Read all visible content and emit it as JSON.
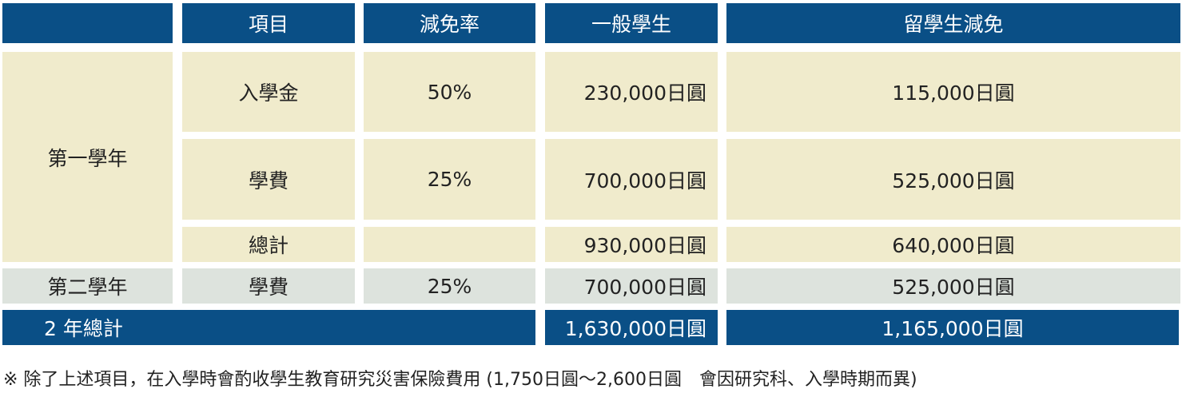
{
  "header": [
    "",
    "項目",
    "減免率",
    "一般學生",
    "留學生減免"
  ],
  "year1": {
    "label": "第一學年",
    "rows": [
      {
        "item": "入學金",
        "rate": "50%",
        "general": "230,000日圓",
        "intl": "115,000日圓"
      },
      {
        "item": "學費",
        "rate": "25%",
        "general": "700,000日圓",
        "intl": "525,000日圓"
      },
      {
        "item": "總計",
        "rate": "",
        "general": "930,000日圓",
        "intl": "640,000日圓"
      }
    ]
  },
  "year2": {
    "label": "第二學年",
    "item": "學費",
    "rate": "25%",
    "general": "700,000日圓",
    "intl": "525,000日圓"
  },
  "total": {
    "label": "2 年總計",
    "general": "1,630,000日圓",
    "intl": "1,165,000日圓"
  },
  "note": "※ 除了上述項目，在入學時會酌收學生教育研究災害保險費用 (1,750日圓～2,600日圓　會因研究科、入學時期而異)",
  "colors": {
    "header": "#0a4f86",
    "year1_bg": "#f0ebcc",
    "year2_bg": "#dde3dd"
  }
}
